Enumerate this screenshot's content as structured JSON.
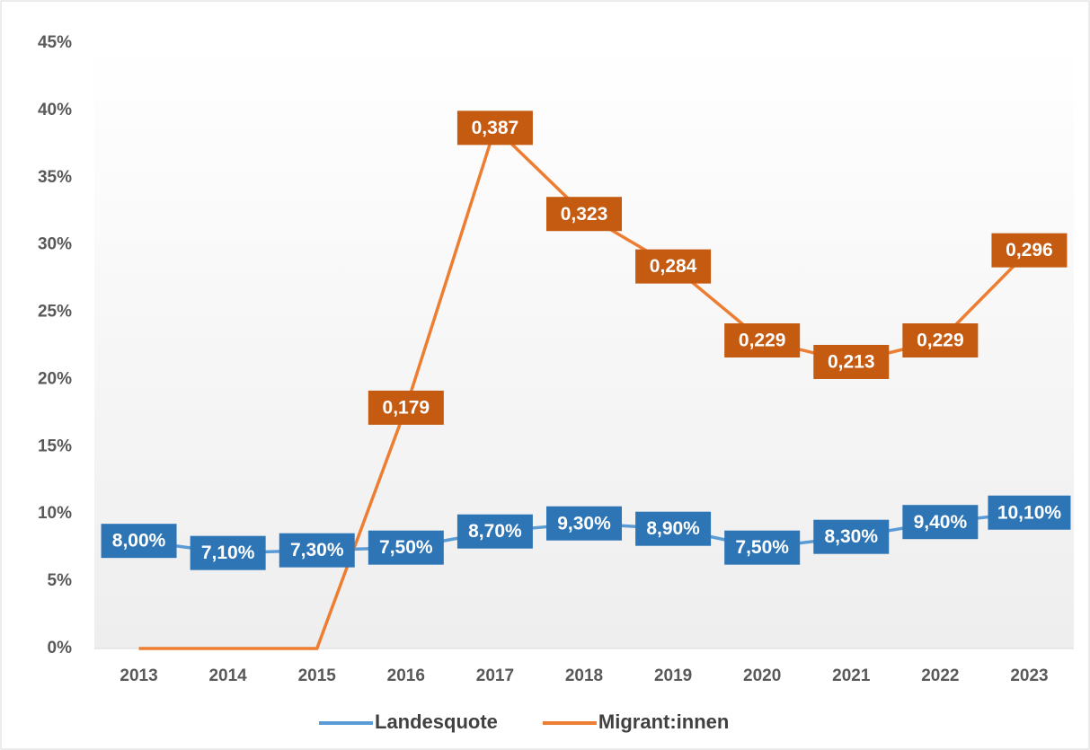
{
  "chart_data": {
    "type": "line",
    "categories": [
      "2013",
      "2014",
      "2015",
      "2016",
      "2017",
      "2018",
      "2019",
      "2020",
      "2021",
      "2022",
      "2023"
    ],
    "series": [
      {
        "name": "Landesquote",
        "color": "#5b9bd5",
        "label_color": "#2e75b6",
        "values": [
          8.0,
          7.1,
          7.3,
          7.5,
          8.7,
          9.3,
          8.9,
          7.5,
          8.3,
          9.4,
          10.1
        ],
        "value_labels": [
          "8,00%",
          "7,10%",
          "7,30%",
          "7,50%",
          "8,70%",
          "9,30%",
          "8,90%",
          "7,50%",
          "8,30%",
          "9,40%",
          "10,10%"
        ]
      },
      {
        "name": "Migrant:innen",
        "color": "#ed7d31",
        "label_color": "#c55a11",
        "values": [
          0,
          0,
          0,
          17.9,
          38.7,
          32.3,
          28.4,
          22.9,
          21.3,
          22.9,
          29.6
        ],
        "value_labels": [
          null,
          null,
          null,
          "0,179",
          "0,387",
          "0,323",
          "0,284",
          "0,229",
          "0,213",
          "0,229",
          "0,296"
        ]
      }
    ],
    "ylim": [
      0,
      45
    ],
    "yticks": [
      {
        "value": 0,
        "label": "0%"
      },
      {
        "value": 5,
        "label": "5%"
      },
      {
        "value": 10,
        "label": "10%"
      },
      {
        "value": 15,
        "label": "15%"
      },
      {
        "value": 20,
        "label": "20%"
      },
      {
        "value": 25,
        "label": "25%"
      },
      {
        "value": 30,
        "label": "30%"
      },
      {
        "value": 35,
        "label": "35%"
      },
      {
        "value": 40,
        "label": "40%"
      },
      {
        "value": 45,
        "label": "45%"
      }
    ],
    "legend": "bottom"
  }
}
